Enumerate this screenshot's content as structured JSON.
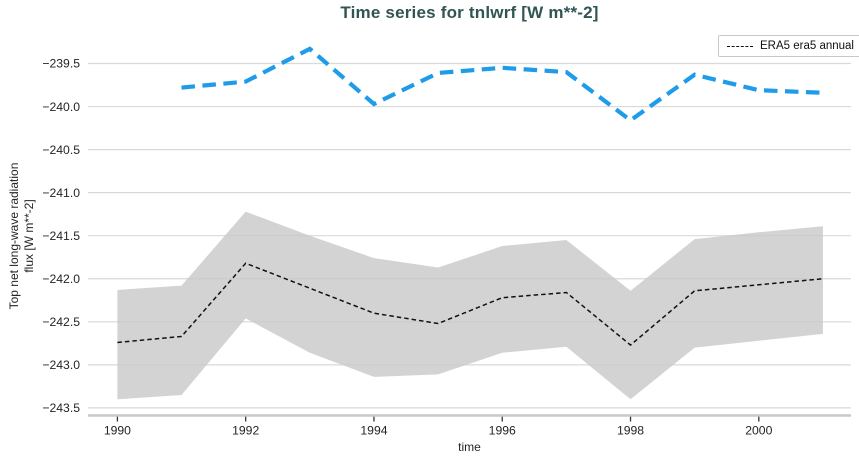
{
  "colors": {
    "title": "#315454",
    "tick_label": "#242424",
    "grid": "#d9d9d9",
    "spine": "#c9c9c9",
    "era5_line": "#111111",
    "band_fill": "#c8c8c8",
    "blue_line": "#1f9ce9"
  },
  "legend": {
    "entries": [
      {
        "label": "ERA5 era5 annual",
        "style": "black-dashed-line"
      }
    ],
    "position": "upper right"
  },
  "chart_data": {
    "type": "line",
    "title": "Time series for tnlwrf [W m**-2]",
    "xlabel": "time",
    "ylabel": "Top net long-wave radiation flux [W m**-2]",
    "ylabel_lines": [
      "Top net long-wave radiation",
      "flux [W m**-2]"
    ],
    "grid": true,
    "xlim": [
      1989.54,
      2001.44
    ],
    "ylim": [
      -243.69,
      -239.1
    ],
    "x_ticks": [
      1990,
      1992,
      1994,
      1996,
      1998,
      2000
    ],
    "y_ticks": [
      -239.5,
      -240.0,
      -240.5,
      -241.0,
      -241.5,
      -242.0,
      -242.5,
      -243.0,
      -243.5
    ],
    "series": [
      {
        "name": "ERA5 era5 annual",
        "in_legend": true,
        "style": "thin-black-dashed",
        "x": [
          1990,
          1991,
          1992,
          1993,
          1994,
          1995,
          1996,
          1997,
          1998,
          1999,
          2000,
          2001
        ],
        "y": [
          -242.74,
          -242.67,
          -241.82,
          -242.11,
          -242.4,
          -242.52,
          -242.22,
          -242.16,
          -242.77,
          -242.14,
          -242.07,
          -242.0
        ],
        "band_max": [
          -242.13,
          -242.08,
          -241.22,
          -241.5,
          -241.76,
          -241.87,
          -241.62,
          -241.55,
          -242.14,
          -241.54,
          -241.46,
          -241.39
        ],
        "band_min": [
          -243.4,
          -243.35,
          -242.46,
          -242.86,
          -243.14,
          -243.11,
          -242.86,
          -242.79,
          -243.4,
          -242.8,
          -242.72,
          -242.64
        ]
      },
      {
        "name": "",
        "in_legend": false,
        "style": "thick-blue-dashed",
        "x": [
          1991,
          1992,
          1993,
          1994,
          1995,
          1996,
          1997,
          1998,
          1999,
          2000,
          2001
        ],
        "y": [
          -239.78,
          -239.71,
          -239.33,
          -239.97,
          -239.61,
          -239.55,
          -239.6,
          -240.16,
          -239.63,
          -239.81,
          -239.84
        ]
      }
    ]
  }
}
